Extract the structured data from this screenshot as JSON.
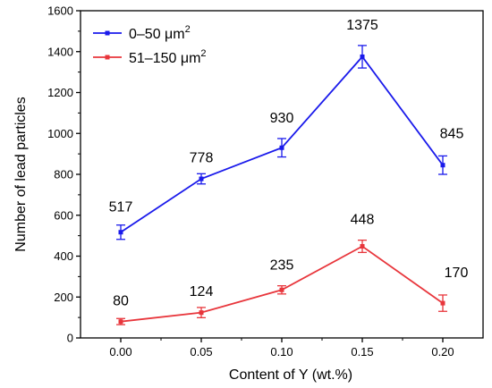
{
  "chart_data": {
    "type": "line",
    "title": "",
    "xlabel": "Content of Y (wt.%)",
    "ylabel": "Number of lead particles",
    "x": [
      0.0,
      0.05,
      0.1,
      0.15,
      0.2
    ],
    "x_tick_labels": [
      "0.00",
      "0.05",
      "0.10",
      "0.15",
      "0.20"
    ],
    "xlim": [
      -0.025,
      0.225
    ],
    "ylim": [
      0,
      1600
    ],
    "y_ticks": [
      0,
      200,
      400,
      600,
      800,
      1000,
      1200,
      1400,
      1600
    ],
    "legend_position": "top-left",
    "grid": false,
    "series": [
      {
        "name_prefix": "0–50 ",
        "name_unit": "μm",
        "name_sup": "2",
        "color": "#1a1aeb",
        "values": [
          517,
          778,
          930,
          1375,
          845
        ],
        "errors": [
          35,
          25,
          45,
          55,
          45
        ],
        "labels": [
          "517",
          "778",
          "930",
          "1375",
          "845"
        ]
      },
      {
        "name_prefix": "51–150 ",
        "name_unit": "μm",
        "name_sup": "2",
        "color": "#e8363c",
        "values": [
          80,
          124,
          235,
          448,
          170
        ],
        "errors": [
          15,
          25,
          20,
          30,
          40
        ],
        "labels": [
          "80",
          "124",
          "235",
          "448",
          "170"
        ]
      }
    ]
  }
}
